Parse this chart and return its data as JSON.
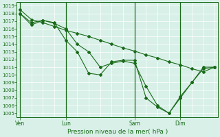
{
  "title": "Pression niveau de la mer( hPa )",
  "bg_color": "#d8f0e8",
  "grid_color": "#ffffff",
  "line_color": "#1a6b1a",
  "marker_color": "#1a6b1a",
  "ylim": [
    1005,
    1019
  ],
  "yticks": [
    1005,
    1006,
    1007,
    1008,
    1009,
    1010,
    1011,
    1012,
    1013,
    1014,
    1015,
    1016,
    1017,
    1018,
    1019
  ],
  "xtick_labels": [
    "Ven",
    "Lun",
    "Sam",
    "Dim"
  ],
  "xtick_positions": [
    0,
    28,
    70,
    98
  ],
  "total_points": 120,
  "series1_x": [
    0,
    7,
    14,
    21,
    28,
    35,
    42,
    49,
    56,
    63,
    70,
    77,
    84,
    91,
    98,
    105,
    112,
    119
  ],
  "series1_y": [
    1018.5,
    1017.2,
    1016.8,
    1016.3,
    1015.8,
    1015.4,
    1015.0,
    1014.5,
    1014.0,
    1013.5,
    1013.1,
    1012.6,
    1012.2,
    1011.7,
    1011.3,
    1010.8,
    1010.4,
    1011.0
  ],
  "series2_x": [
    0,
    7,
    14,
    21,
    28,
    35,
    42,
    49,
    56,
    63,
    70,
    77,
    84,
    91,
    98,
    105,
    112,
    119
  ],
  "series2_y": [
    1018.0,
    1016.8,
    1017.1,
    1016.7,
    1016.0,
    1014.0,
    1013.0,
    1011.0,
    1011.5,
    1011.8,
    1011.5,
    1008.5,
    1006.0,
    1005.0,
    1007.0,
    1009.0,
    1011.0,
    1011.0
  ],
  "series3_x": [
    0,
    7,
    14,
    21,
    28,
    35,
    42,
    49,
    56,
    63,
    70,
    77,
    84,
    91,
    98,
    105,
    112,
    119
  ],
  "series3_y": [
    1018.0,
    1016.5,
    1017.1,
    1016.8,
    1014.5,
    1013.0,
    1010.2,
    1010.0,
    1011.7,
    1011.9,
    1011.9,
    1007.0,
    1005.8,
    1005.0,
    1007.2,
    1009.0,
    1010.8,
    1011.0
  ],
  "vline_x": [
    0,
    28,
    70,
    98
  ],
  "vline_color": "#1a6b1a"
}
